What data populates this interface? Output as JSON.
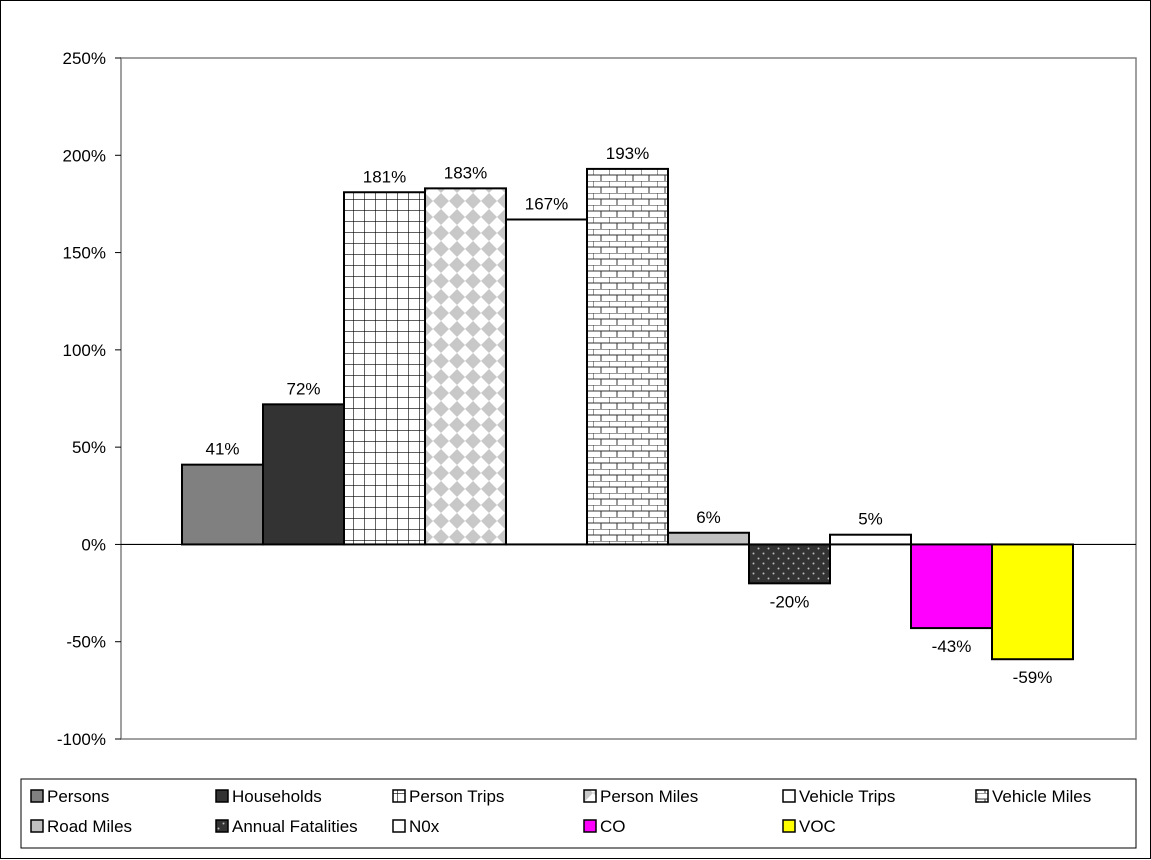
{
  "chart_data": {
    "type": "bar",
    "title": "",
    "xlabel": "",
    "ylabel": "",
    "ylim": [
      -1.0,
      2.5
    ],
    "ytick_values": [
      -1.0,
      -0.5,
      0,
      0.5,
      1.0,
      1.5,
      2.0,
      2.5
    ],
    "ytick_labels": [
      "-100%",
      "-50%",
      "0%",
      "50%",
      "100%",
      "150%",
      "200%",
      "250%"
    ],
    "grid": false,
    "legend_position": "bottom",
    "series": [
      {
        "name": "Persons",
        "value": 0.41,
        "label": "41%",
        "color": "#808080",
        "pattern": "solid"
      },
      {
        "name": "Households",
        "value": 0.72,
        "label": "72%",
        "color": "#333333",
        "pattern": "solid"
      },
      {
        "name": "Person Trips",
        "value": 1.81,
        "label": "181%",
        "color": "#ffffff",
        "pattern": "grid"
      },
      {
        "name": "Person Miles",
        "value": 1.83,
        "label": "183%",
        "color": "#c0c0c0",
        "pattern": "diamond"
      },
      {
        "name": "Vehicle Trips",
        "value": 1.67,
        "label": "167%",
        "color": "#ffffff",
        "pattern": "solid"
      },
      {
        "name": "Vehicle Miles",
        "value": 1.93,
        "label": "193%",
        "color": "#ffffff",
        "pattern": "brick"
      },
      {
        "name": "Road Miles",
        "value": 0.06,
        "label": "6%",
        "color": "#c0c0c0",
        "pattern": "solid"
      },
      {
        "name": "Annual Fatalities",
        "value": -0.2,
        "label": "-20%",
        "color": "#333333",
        "pattern": "dots"
      },
      {
        "name": "N0x",
        "value": 0.05,
        "label": "5%",
        "color": "#ffffff",
        "pattern": "solid"
      },
      {
        "name": "CO",
        "value": -0.43,
        "label": "-43%",
        "color": "#ff00ff",
        "pattern": "solid"
      },
      {
        "name": "VOC",
        "value": -0.59,
        "label": "-59%",
        "color": "#ffff00",
        "pattern": "solid"
      }
    ]
  }
}
